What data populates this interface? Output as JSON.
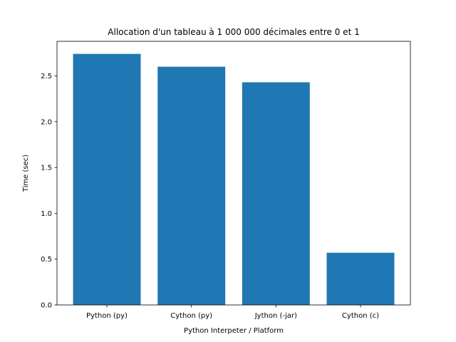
{
  "chart_data": {
    "type": "bar",
    "title": "Allocation d'un tableau à 1 000 000 décimales entre 0 et 1",
    "xlabel": "Python Interpeter / Platform",
    "ylabel": "Time (sec)",
    "categories": [
      "Python (py)",
      "Cython (py)",
      "Jython (-jar)",
      "Cython (c)"
    ],
    "values": [
      2.74,
      2.6,
      2.43,
      0.57
    ],
    "ylim": [
      0,
      2.877
    ],
    "yticks": [
      0.0,
      0.5,
      1.0,
      1.5,
      2.0,
      2.5
    ],
    "ytick_labels": [
      "0.0",
      "0.5",
      "1.0",
      "1.5",
      "2.0",
      "2.5"
    ],
    "bar_color": "#1f77b4",
    "grid": false,
    "legend": "none"
  }
}
